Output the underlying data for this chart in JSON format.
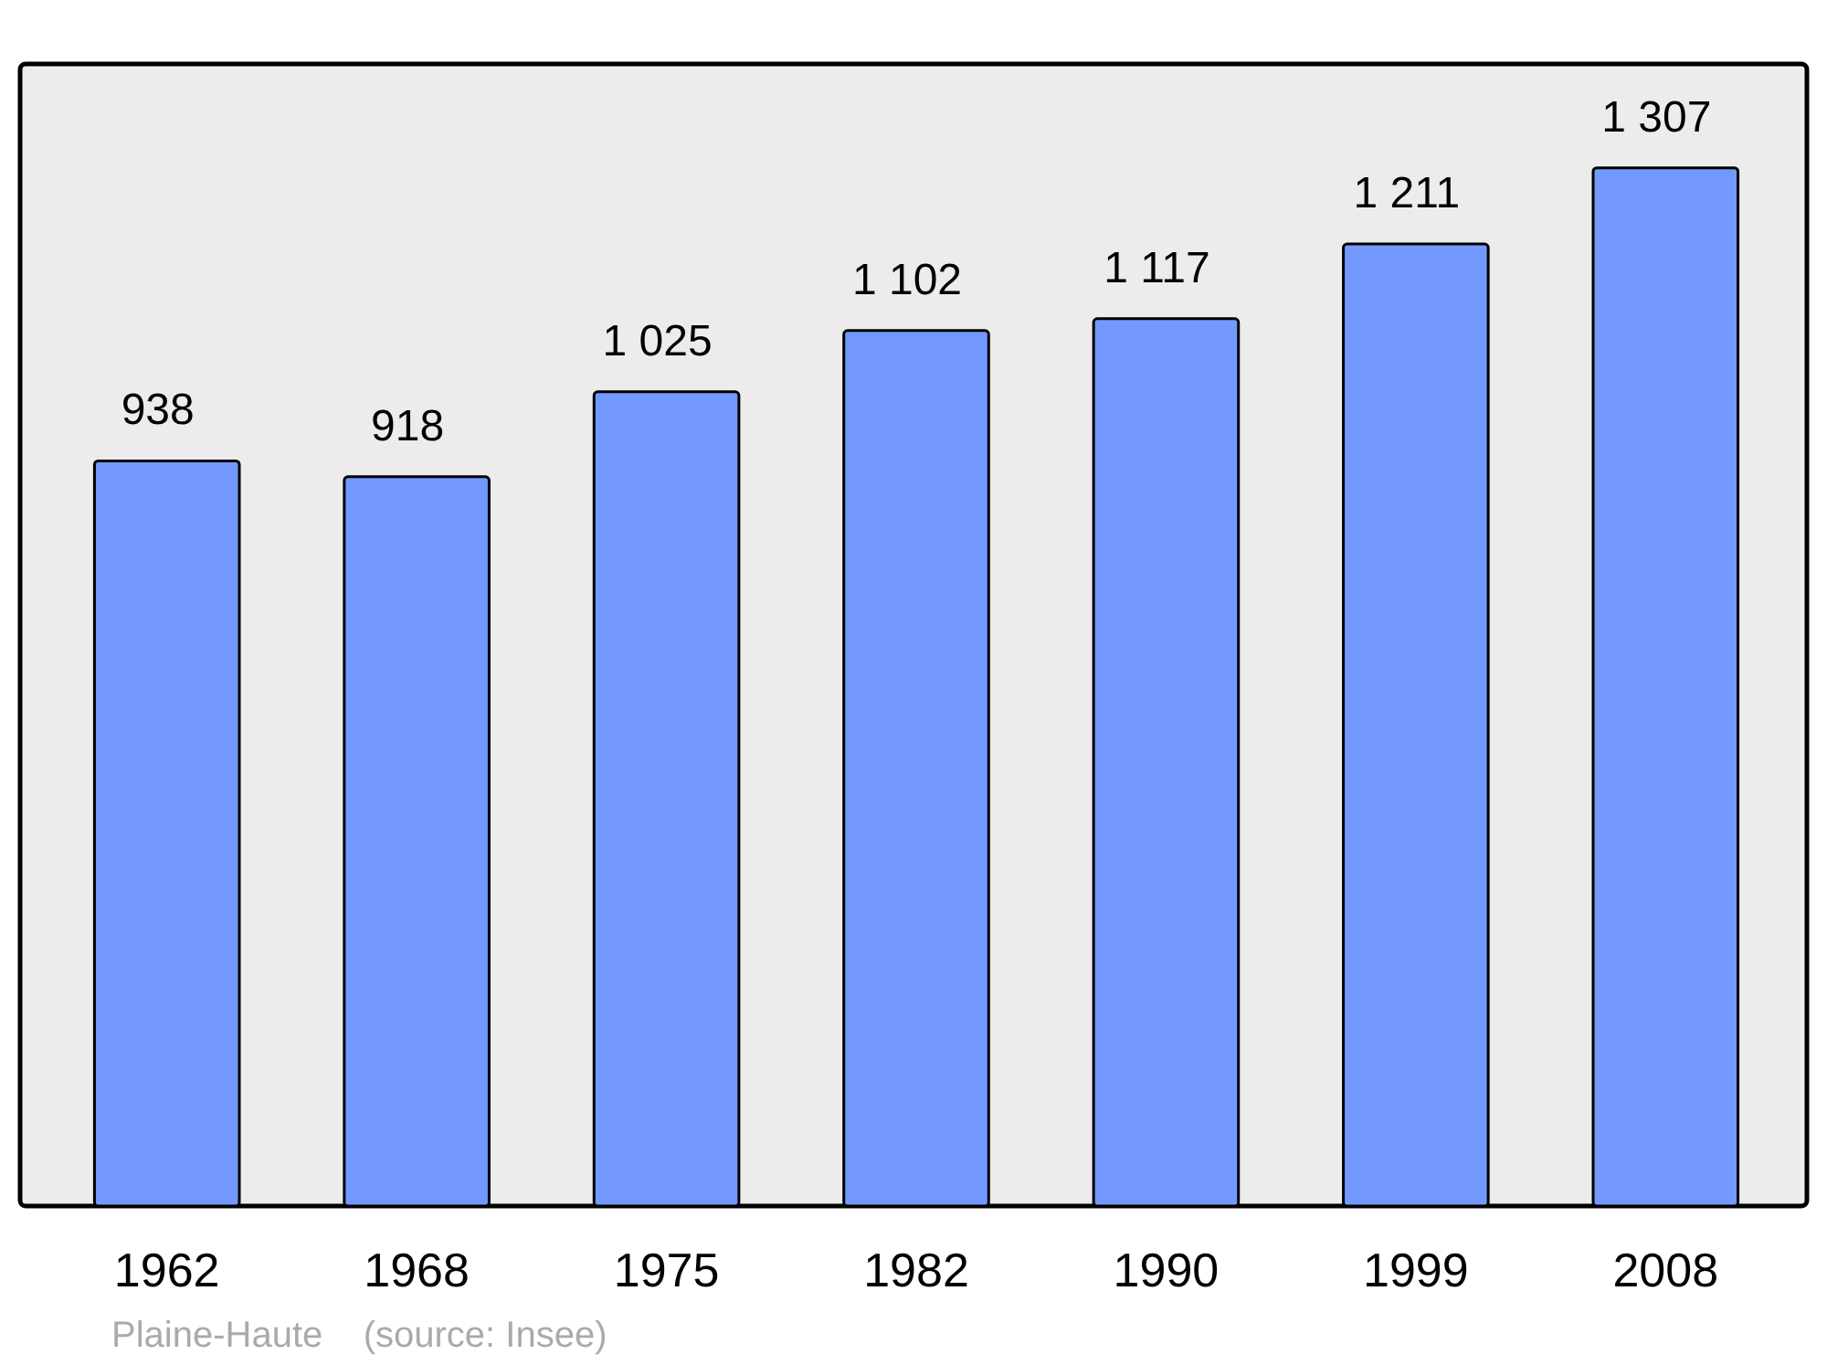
{
  "chart_data": {
    "type": "bar",
    "categories": [
      "1962",
      "1968",
      "1975",
      "1982",
      "1990",
      "1999",
      "2008"
    ],
    "values": [
      938,
      918,
      1025,
      1102,
      1117,
      1211,
      1307
    ],
    "value_labels": [
      "938",
      "918",
      "1 025",
      "1 102",
      "1 117",
      "1 211",
      "1 307"
    ],
    "color": "#7399ff",
    "annotations": [
      "Plaine-Haute    (source: Insee)"
    ]
  }
}
